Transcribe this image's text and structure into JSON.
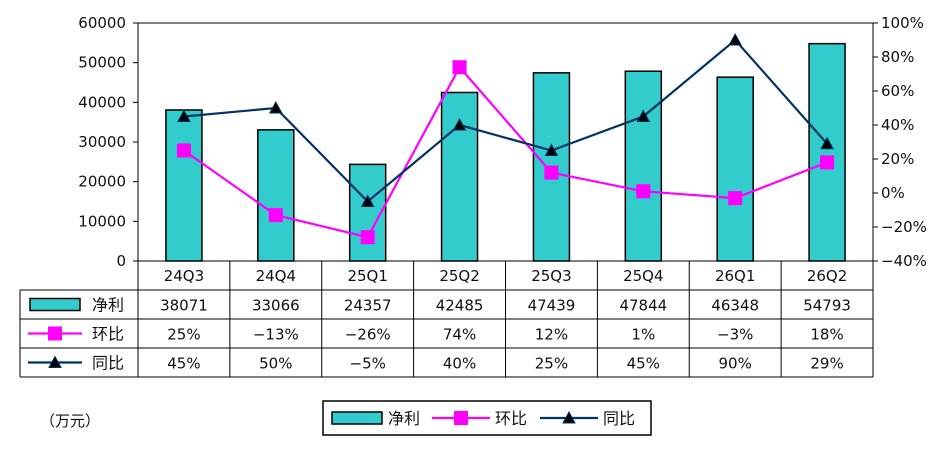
{
  "unit_label": "（万元）",
  "chart_data": {
    "type": "bar+line",
    "categories": [
      "24Q3",
      "24Q4",
      "25Q1",
      "25Q2",
      "25Q3",
      "25Q4",
      "26Q1",
      "26Q2"
    ],
    "series": [
      {
        "name": "净利",
        "type": "bar",
        "axis": "left",
        "values": [
          38071,
          33066,
          24357,
          42485,
          47439,
          47844,
          46348,
          54793
        ],
        "display": [
          "38071",
          "33066",
          "24357",
          "42485",
          "47439",
          "47844",
          "46348",
          "54793"
        ]
      },
      {
        "name": "环比",
        "type": "line",
        "axis": "right",
        "marker": "square",
        "values": [
          25,
          -13,
          -26,
          74,
          12,
          1,
          -3,
          18
        ],
        "display": [
          "25%",
          "-13%",
          "-26%",
          "74%",
          "12%",
          "1%",
          "-3%",
          "18%"
        ]
      },
      {
        "name": "同比",
        "type": "line",
        "axis": "right",
        "marker": "triangle",
        "values": [
          45,
          50,
          -5,
          40,
          25,
          45,
          90,
          29
        ],
        "display": [
          "45%",
          "50%",
          "-5%",
          "40%",
          "25%",
          "45%",
          "90%",
          "29%"
        ]
      }
    ],
    "left_axis": {
      "ylim": [
        0,
        60000
      ],
      "ticks": [
        "0",
        "10000",
        "20000",
        "30000",
        "40000",
        "50000",
        "60000"
      ]
    },
    "right_axis": {
      "ylim": [
        -40,
        100
      ],
      "ticks": [
        "-40%",
        "-20%",
        "0%",
        "20%",
        "40%",
        "60%",
        "80%",
        "100%"
      ]
    },
    "legend": {
      "placement": "bottom",
      "items": [
        "净利",
        "环比",
        "同比"
      ]
    },
    "grid": false,
    "data_table": true
  },
  "colors": {
    "bar": "#33CCCC",
    "mom": "#FF00FF",
    "yoy": "#003366",
    "border": "#000000"
  }
}
